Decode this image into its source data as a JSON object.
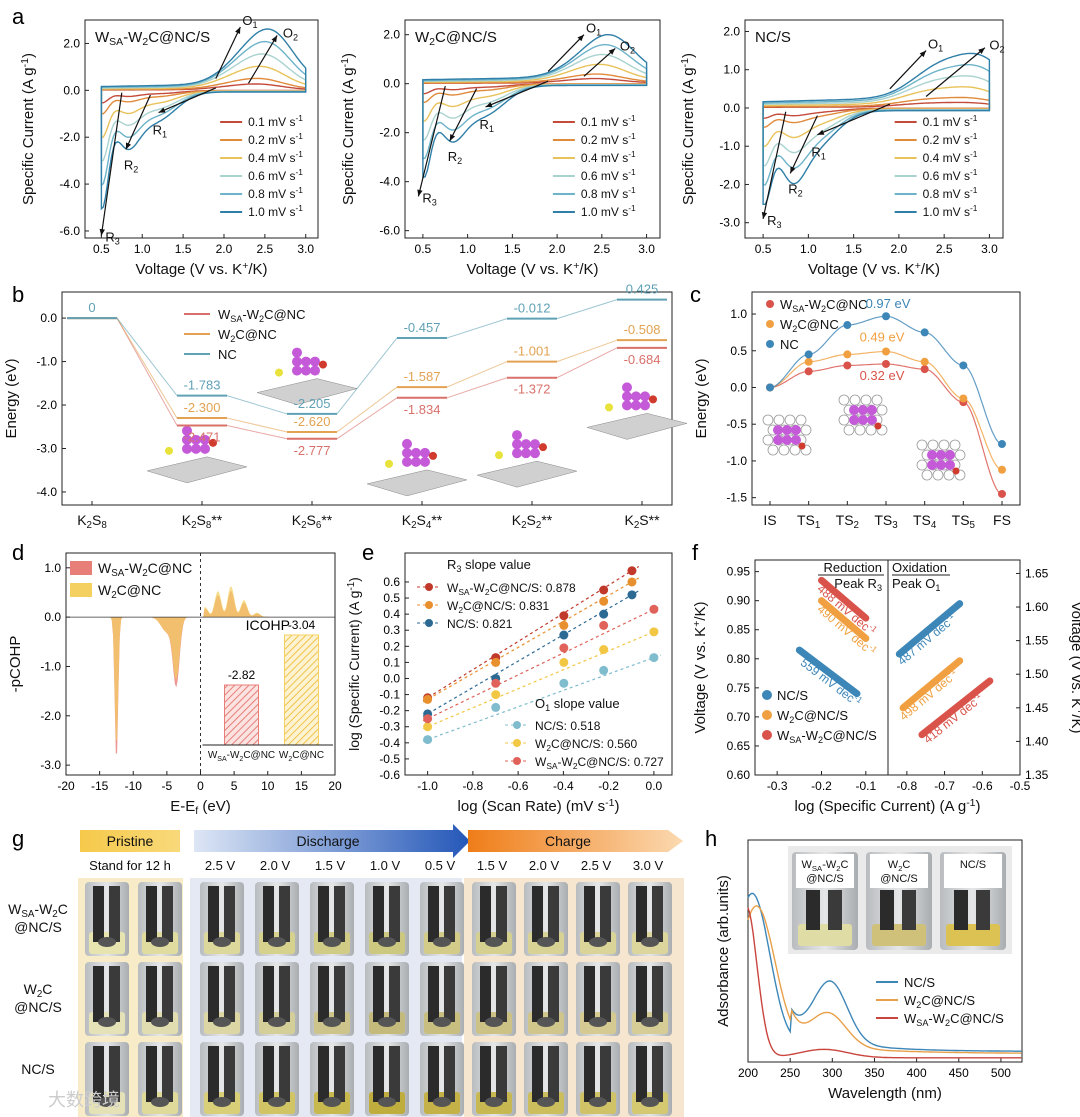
{
  "panel_letters": [
    "a",
    "b",
    "c",
    "d",
    "e",
    "f",
    "g",
    "h"
  ],
  "chart_data": [
    {
      "id": "a1",
      "type": "line",
      "title": "WSA-W2C@NC/S",
      "xlabel": "Voltage (V vs. K+/K)",
      "ylabel": "Specific Current (A g-1)",
      "xlim": [
        0.3,
        3.15
      ],
      "ylim": [
        -6.3,
        3.0
      ],
      "xticks": [
        0.5,
        1.0,
        1.5,
        2.0,
        2.5,
        3.0
      ],
      "xtick_labels": [
        "0.5",
        "1.0",
        "1.5",
        "2.0",
        "2.5",
        "3.0"
      ],
      "yticks": [
        2.0,
        0.0,
        -2.0,
        -4.0,
        -6.0
      ],
      "ytick_labels": [
        "2.0",
        "0.0",
        "-2.0",
        "-4.0",
        "-6.0"
      ],
      "legend": [
        "0.1 mV s-1",
        "0.2 mV s-1",
        "0.4 mV s-1",
        "0.6 mV s-1",
        "0.8 mV s-1",
        "1.0 mV s-1"
      ],
      "colors": [
        "#c44a3a",
        "#e08a3c",
        "#e8c25a",
        "#a9d3cf",
        "#6db3c9",
        "#2f7fa8"
      ],
      "peak_labels": [
        "O1",
        "O2",
        "R1",
        "R2",
        "R3"
      ],
      "o1": [
        2.2,
        2.7
      ],
      "o2": [
        2.5,
        2.6
      ],
      "r1": [
        1.2,
        -1.9
      ],
      "r2": [
        0.8,
        -2.8
      ],
      "r3": [
        0.5,
        -6.2
      ],
      "scale": [
        0.08,
        0.15,
        0.3,
        0.45,
        0.6,
        0.75
      ]
    },
    {
      "id": "a2",
      "type": "line",
      "title": "W2C@NC/S",
      "xlabel": "Voltage (V vs. K+/K)",
      "ylabel": "Specific Current (A g-1)",
      "xlim": [
        0.3,
        3.15
      ],
      "ylim": [
        -6.3,
        2.6
      ],
      "xticks": [
        0.5,
        1.0,
        1.5,
        2.0,
        2.5,
        3.0
      ],
      "xtick_labels": [
        "0.5",
        "1.0",
        "1.5",
        "2.0",
        "2.5",
        "3.0"
      ],
      "yticks": [
        2.0,
        0.0,
        -2.0,
        -4.0,
        -6.0
      ],
      "ytick_labels": [
        "2.0",
        "0.0",
        "-2.0",
        "-4.0",
        "-6.0"
      ],
      "legend": [
        "0.1 mV s-1",
        "0.2 mV s-1",
        "0.4 mV s-1",
        "0.6 mV s-1",
        "0.8 mV s-1",
        "1.0 mV s-1"
      ],
      "colors": [
        "#c44a3a",
        "#e08a3c",
        "#e8c25a",
        "#a9d3cf",
        "#6db3c9",
        "#2f7fa8"
      ],
      "peak_labels": [
        "O1",
        "O2",
        "R1",
        "R2",
        "R3"
      ],
      "o1": [
        2.3,
        2.0
      ],
      "o2": [
        2.5,
        1.6
      ],
      "r1": [
        1.2,
        -1.9
      ],
      "r2": [
        0.8,
        -2.6
      ],
      "r3": [
        0.45,
        -4.6
      ],
      "scale": [
        0.08,
        0.15,
        0.3,
        0.45,
        0.6,
        0.75
      ]
    },
    {
      "id": "a3",
      "type": "line",
      "title": "NC/S",
      "xlabel": "Voltage (V vs. K+/K)",
      "ylabel": "Specific Current (A g-1)",
      "xlim": [
        0.3,
        3.15
      ],
      "ylim": [
        -3.4,
        2.3
      ],
      "xticks": [
        0.5,
        1.0,
        1.5,
        2.0,
        2.5,
        3.0
      ],
      "xtick_labels": [
        "0.5",
        "1.0",
        "1.5",
        "2.0",
        "2.5",
        "3.0"
      ],
      "yticks": [
        2.0,
        1.0,
        0.0,
        -1.0,
        -2.0,
        -3.0
      ],
      "ytick_labels": [
        "2.0",
        "1.0",
        "0.0",
        "-1.0",
        "-2.0",
        "-3.0"
      ],
      "legend": [
        "0.1 mV s-1",
        "0.2 mV s-1",
        "0.4 mV s-1",
        "0.6 mV s-1",
        "0.8 mV s-1",
        "1.0 mV s-1"
      ],
      "colors": [
        "#c44a3a",
        "#e08a3c",
        "#e8c25a",
        "#a9d3cf",
        "#6db3c9",
        "#2f7fa8"
      ],
      "peak_labels": [
        "O1",
        "O2",
        "R1",
        "R2",
        "R3"
      ],
      "o1": [
        2.3,
        1.5
      ],
      "o2": [
        2.8,
        1.75
      ],
      "r1": [
        1.1,
        -1.4
      ],
      "r2": [
        0.8,
        -1.9
      ],
      "r3": [
        0.5,
        -2.9
      ],
      "scale": [
        0.08,
        0.15,
        0.3,
        0.45,
        0.6,
        0.75
      ]
    },
    {
      "id": "b",
      "type": "line",
      "ylabel": "Energy (eV)",
      "ylim": [
        -4.3,
        0.6
      ],
      "yticks": [
        0.0,
        -1.0,
        -2.0,
        -3.0,
        -4.0
      ],
      "ytick_labels": [
        "0.0",
        "-1.0",
        "-2.0",
        "-3.0",
        "-4.0"
      ],
      "categories": [
        "K2S8",
        "K2S8*",
        "K2S6*",
        "K2S4*",
        "K2S2*",
        "K2S*"
      ],
      "series": [
        {
          "name": "WSA-W2C@NC",
          "color": "#d9706a",
          "values": [
            0,
            -2.471,
            -2.777,
            -1.834,
            -1.372,
            -0.684
          ],
          "labels": [
            "",
            "-2.471",
            "-2.777",
            "-1.834",
            "-1.372",
            "-0.684"
          ]
        },
        {
          "name": "W2C@NC",
          "color": "#e3a252",
          "values": [
            0,
            -2.3,
            -2.62,
            -1.587,
            -1.001,
            -0.508
          ],
          "labels": [
            "",
            "-2.300",
            "-2.620",
            "-1.587",
            "-1.001",
            "-0.508"
          ]
        },
        {
          "name": "NC",
          "color": "#5fa1b5",
          "values": [
            0,
            -1.783,
            -2.205,
            -0.457,
            -0.012,
            0.425
          ],
          "labels": [
            "0",
            "-1.783",
            "-2.205",
            "-0.457",
            "-0.012",
            "0.425"
          ]
        }
      ]
    },
    {
      "id": "c",
      "type": "line",
      "ylabel": "Energy (eV)",
      "ylim": [
        -1.6,
        1.3
      ],
      "yticks": [
        1.0,
        0.5,
        0.0,
        -0.5,
        -1.0,
        -1.5
      ],
      "ytick_labels": [
        "1.0",
        "0.5",
        "0.0",
        "-0.5",
        "-1.0",
        "-1.5"
      ],
      "categories": [
        "IS",
        "TS1",
        "TS2",
        "TS3",
        "TS4",
        "TS5",
        "FS"
      ],
      "series": [
        {
          "name": "WSA-W2C@NC",
          "color": "#d9534a",
          "values": [
            0.0,
            0.22,
            0.3,
            0.32,
            0.25,
            -0.2,
            -1.45
          ],
          "barrier": "0.32 eV"
        },
        {
          "name": "W2C@NC",
          "color": "#f0a040",
          "values": [
            0.0,
            0.35,
            0.45,
            0.49,
            0.35,
            -0.15,
            -1.12
          ],
          "barrier": "0.49 eV"
        },
        {
          "name": "NC",
          "color": "#3d86b8",
          "values": [
            0.0,
            0.45,
            0.85,
            0.97,
            0.75,
            0.3,
            -0.77
          ],
          "barrier": "0.97 eV"
        }
      ]
    },
    {
      "id": "d",
      "type": "area",
      "xlabel": "E-Ef (eV)",
      "ylabel": "-pCOHP",
      "xlim": [
        -20,
        20
      ],
      "ylim": [
        -3.2,
        1.3
      ],
      "xticks": [
        -20,
        -15,
        -10,
        -5,
        0,
        5,
        10,
        15,
        20
      ],
      "xtick_labels": [
        "-20",
        "-15",
        "-10",
        "-5",
        "0",
        "5",
        "10",
        "15",
        "20"
      ],
      "yticks": [
        1.0,
        0.0,
        -1.0,
        -2.0,
        -3.0
      ],
      "ytick_labels": [
        "1.0",
        "0.0",
        "-1.0",
        "-2.0",
        "-3.0"
      ],
      "legend": [
        "WSA-W2C@NC",
        "W2C@NC"
      ],
      "colors": [
        "#e87e78",
        "#f4d060"
      ],
      "inset": {
        "title": "ICOHP",
        "categories": [
          "WSA-W2C@NC",
          "W2C@NC"
        ],
        "values": [
          -2.82,
          -3.04
        ],
        "labels": [
          "-2.82",
          "-3.04"
        ]
      }
    },
    {
      "id": "e",
      "type": "scatter",
      "xlabel": "log (Scan Rate) (mV s-1)",
      "ylabel": "log (Specific Current) (A g-1)",
      "xlim": [
        -1.1,
        0.08
      ],
      "ylim": [
        -0.6,
        0.78
      ],
      "xticks": [
        -1.0,
        -0.8,
        -0.6,
        -0.4,
        -0.2,
        0.0
      ],
      "xtick_labels": [
        "-1.0",
        "-0.8",
        "-0.6",
        "-0.4",
        "-0.2",
        "0.0"
      ],
      "yticks": [
        0.6,
        0.5,
        0.4,
        0.3,
        0.2,
        0.1,
        0.0,
        -0.1,
        -0.2,
        -0.3,
        -0.4,
        -0.5,
        -0.6
      ],
      "ytick_labels": [
        "0.6",
        "0.5",
        "0.4",
        "0.3",
        "0.2",
        "0.1",
        "0.0",
        "-0.1",
        "-0.2",
        "-0.3",
        "-0.4",
        "-0.5",
        "-0.6"
      ],
      "x": [
        -1.0,
        -0.699,
        -0.398,
        -0.222,
        -0.097,
        0.0
      ],
      "r3_title": "R3 slope value",
      "o1_title": "O1 slope value",
      "series": [
        {
          "name": "WSA-W2C@NC/S: 0.878",
          "group": "R3",
          "color": "#c0392b",
          "values": [
            -0.12,
            0.13,
            0.39,
            0.55,
            0.67,
            null
          ]
        },
        {
          "name": "W2C@NC/S: 0.831",
          "group": "R3",
          "color": "#e8902e",
          "values": [
            -0.13,
            0.1,
            0.33,
            0.48,
            0.6,
            null
          ]
        },
        {
          "name": "NC/S: 0.821",
          "group": "R3",
          "color": "#2c6a94",
          "values": [
            -0.22,
            0.0,
            0.27,
            0.4,
            0.52,
            null
          ]
        },
        {
          "name": "NC/S: 0.518",
          "group": "O1",
          "color": "#7fbccd",
          "values": [
            -0.38,
            -0.18,
            -0.03,
            0.05,
            null,
            0.13
          ]
        },
        {
          "name": "W2C@NC/S: 0.560",
          "group": "O1",
          "color": "#f2c744",
          "values": [
            -0.3,
            -0.1,
            0.1,
            0.18,
            null,
            0.29
          ]
        },
        {
          "name": "WSA-W2C@NC/S: 0.727",
          "group": "O1",
          "color": "#e0625a",
          "values": [
            -0.25,
            -0.03,
            0.19,
            0.33,
            null,
            0.43
          ]
        }
      ]
    },
    {
      "id": "f",
      "type": "scatter",
      "xlabel": "log (Specific Current) (A g-1)",
      "ylabel_left": "Voltage (V vs. K+/K)",
      "ylabel_right": "Voltage (V vs. K+/K)",
      "xlim": [
        -0.35,
        -0.5
      ],
      "left_ylim": [
        0.6,
        0.97
      ],
      "right_ylim": [
        1.35,
        1.67
      ],
      "left_yticks": [
        0.95,
        0.9,
        0.85,
        0.8,
        0.75,
        0.7,
        0.65,
        0.6
      ],
      "left_ytick_labels": [
        "0.95",
        "0.90",
        "0.85",
        "0.80",
        "0.75",
        "0.70",
        "0.65",
        "0.60"
      ],
      "right_yticks": [
        1.65,
        1.6,
        1.55,
        1.5,
        1.45,
        1.4,
        1.35
      ],
      "right_ytick_labels": [
        "1.65",
        "1.60",
        "1.55",
        "1.50",
        "1.45",
        "1.40",
        "1.35"
      ],
      "xticks": [
        -0.3,
        -0.2,
        -0.1,
        -0.8,
        -0.7,
        -0.6,
        -0.5
      ],
      "xtick_labels": [
        "-0.3",
        "-0.2",
        "-0.1",
        "-0.8",
        "-0.7",
        "-0.6",
        "-0.5"
      ],
      "reduction_label": "Reduction",
      "reduction_peak": "Peak R3",
      "oxidation_label": "Oxidation",
      "oxidation_peak": "Peak O1",
      "legend": [
        "NC/S",
        "W2C@NC/S",
        "WSA-W2C@NC/S"
      ],
      "colors": [
        "#3d86b8",
        "#f0a040",
        "#d9534a"
      ],
      "tafel": [
        {
          "panel": "reduction",
          "series": "WSA-W2C@NC/S",
          "slope_label": "488 mV dec-1",
          "x": [
            -0.2,
            -0.1
          ],
          "y": [
            0.935,
            0.87
          ]
        },
        {
          "panel": "reduction",
          "series": "W2C@NC/S",
          "slope_label": "490 mV dec-1",
          "x": [
            -0.2,
            -0.1
          ],
          "y": [
            0.9,
            0.835
          ]
        },
        {
          "panel": "reduction",
          "series": "NC/S",
          "slope_label": "559 mV dec-1",
          "x": [
            -0.25,
            -0.12
          ],
          "y": [
            0.815,
            0.74
          ]
        },
        {
          "panel": "oxidation",
          "series": "NC/S",
          "slope_label": "487 mV dec-1",
          "x": [
            -0.82,
            -0.66
          ],
          "y": [
            1.53,
            1.605
          ]
        },
        {
          "panel": "oxidation",
          "series": "W2C@NC/S",
          "slope_label": "498 mV dec-1",
          "x": [
            -0.81,
            -0.66
          ],
          "y": [
            1.45,
            1.52
          ]
        },
        {
          "panel": "oxidation",
          "series": "WSA-W2C@NC/S",
          "slope_label": "418 mV dec-1",
          "x": [
            -0.76,
            -0.58
          ],
          "y": [
            1.41,
            1.49
          ]
        }
      ]
    },
    {
      "id": "h",
      "type": "line",
      "xlabel": "Wavelength (nm)",
      "ylabel": "Adsorbance (arb.units)",
      "xlim": [
        200,
        525
      ],
      "xticks": [
        200,
        250,
        300,
        350,
        400,
        450,
        500
      ],
      "xtick_labels": [
        "200",
        "250",
        "300",
        "350",
        "400",
        "450",
        "500"
      ],
      "series": [
        {
          "name": "NC/S",
          "color": "#3d86b8"
        },
        {
          "name": "W2C@NC/S",
          "color": "#e8a04a"
        },
        {
          "name": "WSA-W2C@NC/S",
          "color": "#c9453e"
        }
      ],
      "inset_labels": [
        "WSA-W2C @NC/S",
        "W2C @NC/S",
        "NC/S"
      ]
    }
  ],
  "panel_g": {
    "stage_pristine": "Pristine",
    "stage_discharge": "Discharge",
    "stage_charge": "Charge",
    "stand_label": "Stand for 12 h",
    "discharge_voltages": [
      "2.5 V",
      "2.0 V",
      "1.5 V",
      "1.0 V",
      "0.5 V"
    ],
    "charge_voltages": [
      "1.5 V",
      "2.0 V",
      "2.5 V",
      "3.0 V"
    ],
    "rows": [
      "WSA-W2C @NC/S",
      "W2C @NC/S",
      "NC/S"
    ]
  },
  "watermark": "大数跨境"
}
